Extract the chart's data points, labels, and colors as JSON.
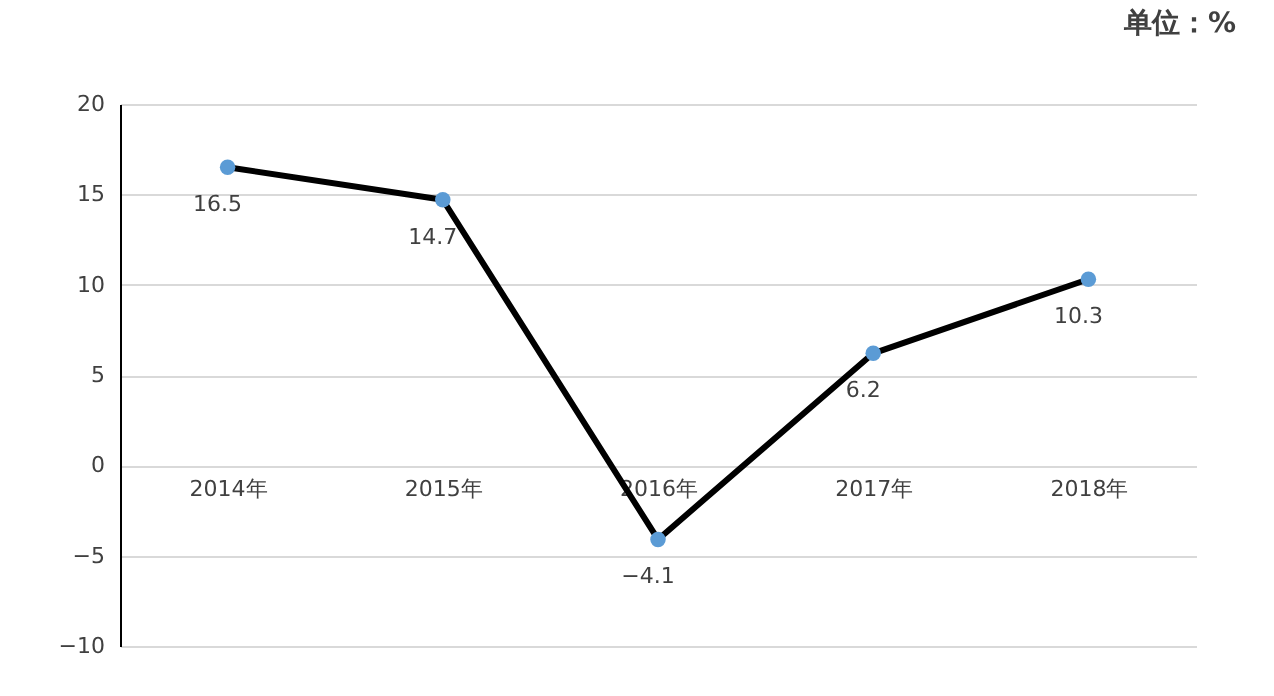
{
  "chart_data": {
    "type": "line",
    "categories": [
      "2014年",
      "2015年",
      "2016年",
      "2017年",
      "2018年"
    ],
    "series": [
      {
        "color": "#000000",
        "colors": [
          "#5b9bd5",
          "#5b9bd5",
          "#5b9bd5",
          "#5b9bd5",
          "#5b9bd5"
        ],
        "values": [
          16.5,
          14.7,
          -4.1,
          6.2,
          10.3
        ]
      }
    ],
    "ylim": [
      -10,
      20
    ],
    "yticks": [
      -10,
      -5,
      0,
      5,
      10,
      15,
      20
    ],
    "grid": "y",
    "marker": "circle",
    "line_style": "solid",
    "data_labels": true,
    "annotations": [
      "单位：%"
    ]
  }
}
